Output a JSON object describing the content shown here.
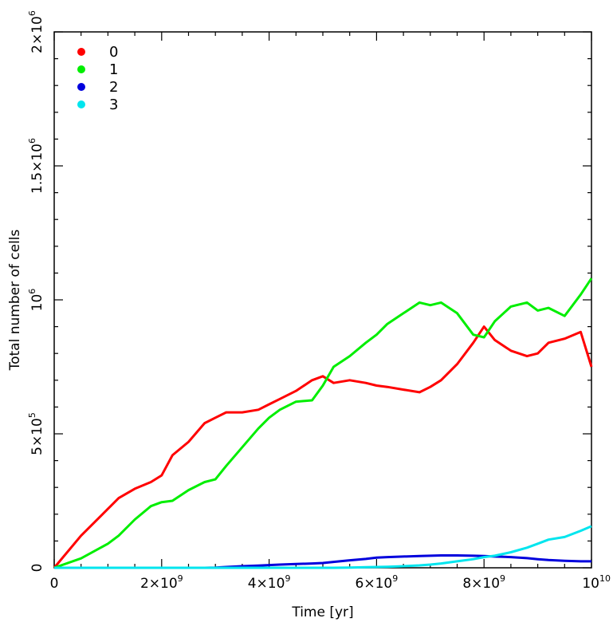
{
  "chart_data": {
    "type": "line",
    "xlabel": "Time [yr]",
    "ylabel": "Total number of cells",
    "xlim": [
      0,
      10000000000
    ],
    "ylim": [
      0,
      2000000
    ],
    "x_ticks": [
      {
        "value": 0,
        "base": "0",
        "exp": ""
      },
      {
        "value": 2000000000,
        "base": "2×10",
        "exp": "9"
      },
      {
        "value": 4000000000,
        "base": "4×10",
        "exp": "9"
      },
      {
        "value": 6000000000,
        "base": "6×10",
        "exp": "9"
      },
      {
        "value": 8000000000,
        "base": "8×10",
        "exp": "9"
      },
      {
        "value": 10000000000,
        "base": "10",
        "exp": "10"
      }
    ],
    "y_ticks": [
      {
        "value": 0,
        "base": "0",
        "exp": ""
      },
      {
        "value": 500000,
        "base": "5×10",
        "exp": "5"
      },
      {
        "value": 1000000,
        "base": "10",
        "exp": "6"
      },
      {
        "value": 1500000,
        "base": "1.5×10",
        "exp": "6"
      },
      {
        "value": 2000000,
        "base": "2×10",
        "exp": "6"
      }
    ],
    "legend_position": "top-left",
    "grid": false,
    "x": [
      0,
      500000000,
      1000000000,
      1200000000,
      1500000000,
      1800000000,
      2000000000,
      2200000000,
      2500000000,
      2800000000,
      3000000000,
      3200000000,
      3500000000,
      3800000000,
      4000000000,
      4200000000,
      4500000000,
      4800000000,
      5000000000,
      5200000000,
      5500000000,
      5800000000,
      6000000000,
      6200000000,
      6500000000,
      6800000000,
      7000000000,
      7200000000,
      7500000000,
      7800000000,
      8000000000,
      8200000000,
      8500000000,
      8800000000,
      9000000000,
      9200000000,
      9500000000,
      9800000000,
      10000000000
    ],
    "series": [
      {
        "name": "0",
        "color": "#ff0000",
        "values": [
          0,
          120000,
          220000,
          260000,
          295000,
          320000,
          345000,
          420000,
          470000,
          540000,
          560000,
          580000,
          580000,
          590000,
          610000,
          630000,
          660000,
          700000,
          715000,
          690000,
          700000,
          690000,
          680000,
          675000,
          665000,
          655000,
          675000,
          700000,
          760000,
          840000,
          900000,
          850000,
          810000,
          790000,
          800000,
          840000,
          855000,
          880000,
          750000
        ]
      },
      {
        "name": "1",
        "color": "#00ee00",
        "values": [
          0,
          35000,
          90000,
          120000,
          180000,
          230000,
          245000,
          250000,
          290000,
          320000,
          330000,
          380000,
          450000,
          520000,
          560000,
          590000,
          620000,
          625000,
          680000,
          750000,
          790000,
          840000,
          870000,
          910000,
          950000,
          990000,
          980000,
          990000,
          950000,
          870000,
          860000,
          920000,
          975000,
          990000,
          960000,
          970000,
          940000,
          1020000,
          1080000
        ]
      },
      {
        "name": "2",
        "color": "#0000dd",
        "values": [
          0,
          0,
          0,
          0,
          0,
          0,
          0,
          0,
          0,
          0,
          1000,
          3000,
          6000,
          8000,
          10000,
          12000,
          14000,
          16000,
          18000,
          22000,
          28000,
          33000,
          38000,
          40000,
          42000,
          44000,
          45000,
          46000,
          46000,
          45000,
          44000,
          42000,
          40000,
          36000,
          32000,
          29000,
          26000,
          24000,
          24000
        ]
      },
      {
        "name": "3",
        "color": "#00e5ee",
        "values": [
          0,
          0,
          0,
          0,
          0,
          0,
          0,
          0,
          0,
          0,
          0,
          0,
          0,
          0,
          0,
          0,
          0,
          0,
          0,
          0,
          1000,
          2000,
          3000,
          4000,
          6000,
          9000,
          12000,
          16000,
          24000,
          32000,
          40000,
          45000,
          58000,
          75000,
          90000,
          105000,
          115000,
          138000,
          155000
        ]
      }
    ]
  }
}
